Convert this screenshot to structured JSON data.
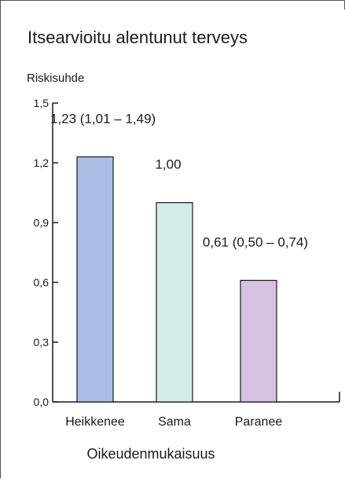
{
  "chart_data": {
    "type": "bar",
    "title": "Itsearvioitu alentunut terveys",
    "ylabel": "Riskisuhde",
    "xlabel": "Oikeudenmukaisuus",
    "categories": [
      "Heikkenee",
      "Sama",
      "Paranee"
    ],
    "values": [
      1.23,
      1.0,
      0.61
    ],
    "data_labels": [
      "1,23 (1,01 – 1,49)",
      "1,00",
      "0,61 (0,50 – 0,74)"
    ],
    "bar_colors": [
      "#a9bfe3",
      "#d3ece6",
      "#d7c1e0"
    ],
    "ylim": [
      0,
      1.5
    ],
    "yticks": [
      0.0,
      0.3,
      0.6,
      0.9,
      1.2,
      1.5
    ],
    "ytick_labels": [
      "0,0",
      "0,3",
      "0,6",
      "0,9",
      "1,2",
      "1,5"
    ],
    "grid": false
  }
}
